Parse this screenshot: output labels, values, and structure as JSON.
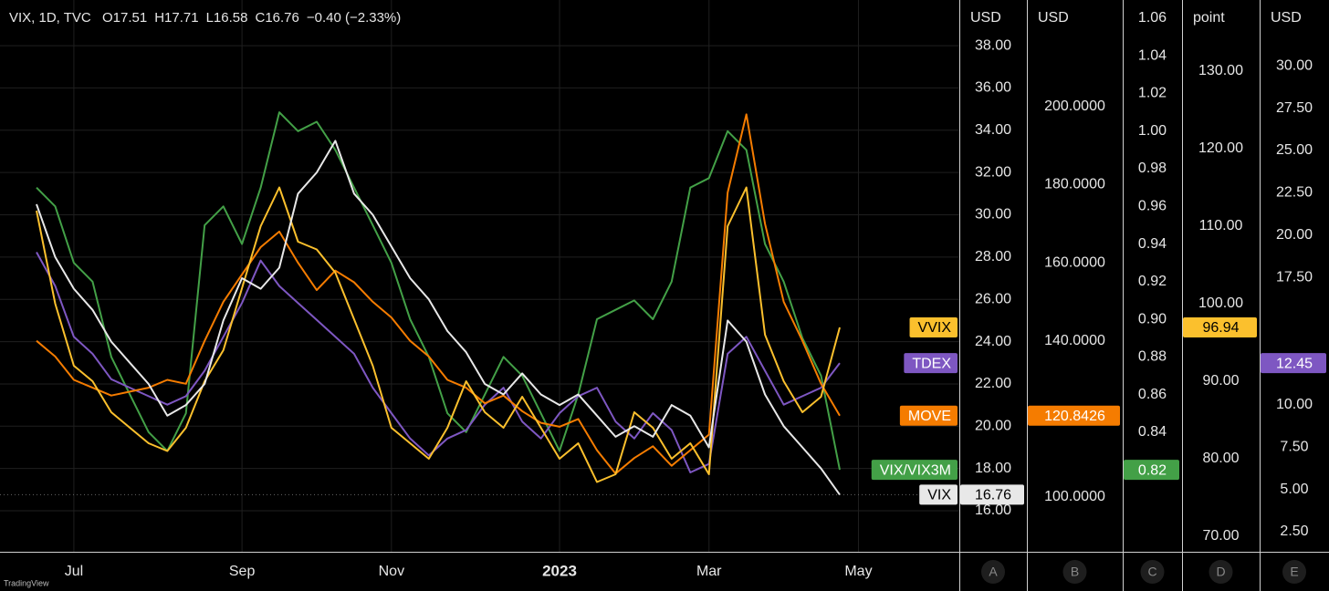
{
  "chart_data": {
    "type": "line",
    "title": "VIX, 1D, TVC",
    "ohlc": [
      "O17.51",
      "H17.71",
      "L16.58",
      "C16.76",
      "−0.40 (−2.33%)"
    ],
    "watermark": "TradingView",
    "grid": true,
    "categories": [
      null,
      null,
      "Jul",
      null,
      null,
      null,
      null,
      null,
      null,
      null,
      null,
      "Sep",
      null,
      null,
      null,
      null,
      null,
      null,
      null,
      "Nov",
      null,
      null,
      null,
      null,
      null,
      null,
      null,
      null,
      "2023",
      null,
      null,
      null,
      null,
      null,
      null,
      null,
      "Mar",
      null,
      null,
      null,
      null,
      null,
      null,
      null,
      "May",
      null
    ],
    "axes": [
      {
        "letter": "A",
        "unit": "USD",
        "ylim": [
          14.06,
          40.16
        ],
        "yticks": [
          {
            "value": 16,
            "label": "16.00"
          },
          {
            "value": 18,
            "label": "18.00"
          },
          {
            "value": 20,
            "label": "20.00"
          },
          {
            "value": 22,
            "label": "22.00"
          },
          {
            "value": 24,
            "label": "24.00"
          },
          {
            "value": 26,
            "label": "26.00"
          },
          {
            "value": 28,
            "label": "28.00"
          },
          {
            "value": 30,
            "label": "30.00"
          },
          {
            "value": 32,
            "label": "32.00"
          },
          {
            "value": 34,
            "label": "34.00"
          },
          {
            "value": 36,
            "label": "36.00"
          },
          {
            "value": 38,
            "label": "38.00"
          }
        ]
      },
      {
        "letter": "B",
        "unit": "USD",
        "ylim": [
          85.98,
          227.3
        ],
        "yticks": [
          {
            "value": 100,
            "label": "100.0000"
          },
          {
            "value": 140,
            "label": "140.0000"
          },
          {
            "value": 160,
            "label": "160.0000"
          },
          {
            "value": 180,
            "label": "180.0000"
          },
          {
            "value": 200,
            "label": "200.0000"
          }
        ]
      },
      {
        "letter": "C",
        "ylim": [
          0.7764,
          1.0697
        ],
        "yticks": [
          0.84,
          {
            "value": 0.86,
            "label": "0.86"
          },
          0.88,
          {
            "value": 0.9,
            "label": "0.90"
          },
          0.92,
          0.94,
          0.96,
          0.98,
          {
            "value": 1,
            "label": "1.00"
          },
          1.02,
          1.04,
          1.06
        ]
      },
      {
        "letter": "D",
        "unit": "point",
        "ylim": [
          68,
          139.18
        ],
        "yticks": [
          {
            "value": 70,
            "label": "70.00"
          },
          {
            "value": 80,
            "label": "80.00"
          },
          {
            "value": 90,
            "label": "90.00"
          },
          {
            "value": 100,
            "label": "100.00"
          },
          {
            "value": 110,
            "label": "110.00"
          },
          {
            "value": 120,
            "label": "120.00"
          },
          {
            "value": 130,
            "label": "130.00"
          }
        ]
      },
      {
        "letter": "E",
        "unit": "USD",
        "ylim": [
          1.316,
          33.88
        ],
        "yticks": [
          {
            "value": 2.5,
            "label": "2.50"
          },
          {
            "value": 5,
            "label": "5.00"
          },
          {
            "value": 7.5,
            "label": "7.50"
          },
          {
            "value": 10,
            "label": "10.00"
          },
          {
            "value": 17.5,
            "label": "17.50"
          },
          {
            "value": 20,
            "label": "20.00"
          },
          {
            "value": 22.5,
            "label": "22.50"
          },
          {
            "value": 25,
            "label": "25.00"
          },
          {
            "value": 27.5,
            "label": "27.50"
          },
          {
            "value": 30,
            "label": "30.00"
          }
        ]
      }
    ],
    "series": [
      {
        "name": "VIX/VIX3M",
        "color": "#43a047",
        "axis": "C",
        "last_value": {
          "value": 0.82,
          "label": "0.82"
        },
        "values": [
          0.97,
          0.96,
          0.93,
          0.92,
          0.88,
          0.86,
          0.84,
          0.83,
          0.85,
          0.95,
          0.96,
          0.94,
          0.97,
          1.01,
          1.0,
          1.005,
          0.99,
          0.97,
          0.95,
          0.93,
          0.9,
          0.88,
          0.85,
          0.84,
          0.86,
          0.88,
          0.87,
          0.85,
          0.83,
          0.86,
          0.9,
          0.905,
          0.91,
          0.9,
          0.92,
          0.97,
          0.975,
          1.0,
          0.99,
          0.94,
          0.92,
          0.89,
          0.87,
          0.82,
          null,
          null
        ]
      },
      {
        "name": "TDEX",
        "color": "#7e57c2",
        "axis": "E",
        "last_value": {
          "value": 12.45,
          "label": "12.45"
        },
        "values": [
          19,
          17,
          14,
          13,
          11.5,
          11,
          10.5,
          10,
          10.5,
          12,
          14,
          16,
          18.5,
          17,
          16,
          15,
          14,
          13,
          11,
          9.5,
          8,
          7,
          8,
          8.5,
          10,
          11,
          9,
          8,
          9.5,
          10.5,
          11,
          9,
          8,
          9.5,
          8.5,
          6,
          6.5,
          13,
          14,
          12,
          10,
          10.5,
          11,
          12.45,
          null,
          null
        ]
      },
      {
        "name": "MOVE",
        "color": "#f57c00",
        "axis": "B",
        "last_value": {
          "value": 120.8426,
          "label": "120.8426"
        },
        "values": [
          140,
          136,
          130,
          128,
          126,
          127,
          128,
          130,
          129,
          140,
          150,
          157,
          164,
          168,
          160,
          153,
          158,
          155,
          150,
          146,
          140,
          136,
          130,
          128,
          124,
          126,
          122,
          119,
          118,
          120,
          112,
          106,
          110,
          113,
          108,
          112,
          116,
          178,
          198,
          170,
          150,
          140,
          129,
          120.8426,
          null,
          null
        ]
      },
      {
        "name": "VVIX",
        "color": "#fbc02d",
        "axis": "D",
        "last_value": {
          "value": 96.94,
          "label": "96.94"
        },
        "values": [
          112,
          100,
          92,
          90,
          86,
          84,
          82,
          81,
          84,
          90,
          94,
          102,
          110,
          115,
          108,
          107,
          104,
          98,
          92,
          84,
          82,
          80,
          84,
          90,
          86,
          84,
          88,
          84,
          80,
          82,
          77,
          78,
          86,
          84,
          80,
          82,
          78,
          110,
          115,
          96,
          90,
          86,
          88,
          96.94,
          null,
          null
        ]
      },
      {
        "name": "VIX",
        "color": "#e8e8e8",
        "axis": "A",
        "last_value": {
          "value": 16.76,
          "label": "16.76"
        },
        "values": [
          30.5,
          28,
          26.5,
          25.5,
          24,
          23,
          22,
          20.5,
          21,
          22,
          25,
          27,
          26.5,
          27.5,
          31,
          32,
          33.5,
          31,
          30,
          28.5,
          27,
          26,
          24.5,
          23.5,
          22,
          21.5,
          22.5,
          21.5,
          21,
          21.5,
          20.5,
          19.5,
          20,
          19.5,
          21,
          20.5,
          19,
          25,
          24,
          21.5,
          20,
          19,
          18,
          16.76,
          null,
          null
        ]
      }
    ]
  }
}
